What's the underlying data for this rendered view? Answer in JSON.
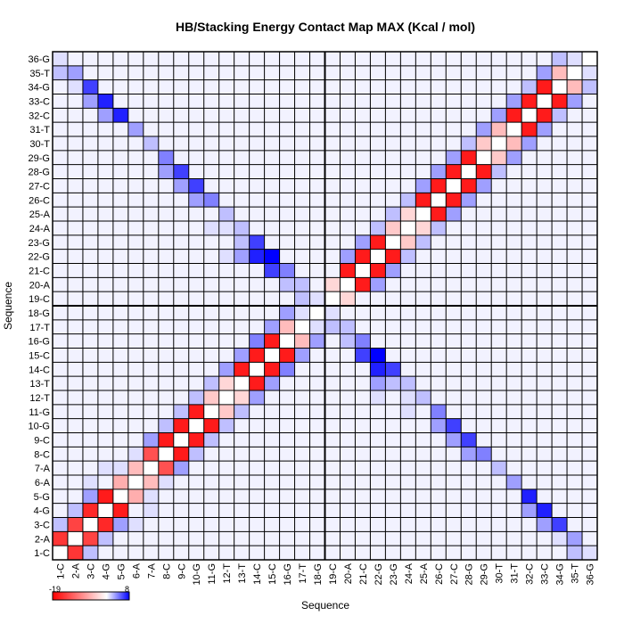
{
  "chart_data": {
    "type": "heatmap",
    "title": "HB/Stacking Energy Contact Map MAX (Kcal / mol)",
    "xlabel": "Sequence",
    "ylabel": "Sequence",
    "labels": [
      "1-C",
      "2-A",
      "3-C",
      "4-G",
      "5-G",
      "6-A",
      "7-A",
      "8-C",
      "9-C",
      "10-G",
      "11-G",
      "12-T",
      "13-T",
      "14-C",
      "15-C",
      "16-G",
      "17-T",
      "18-G",
      "19-C",
      "20-A",
      "21-C",
      "22-G",
      "23-G",
      "24-A",
      "25-A",
      "26-C",
      "27-C",
      "28-G",
      "29-G",
      "30-T",
      "31-T",
      "32-C",
      "33-C",
      "34-G",
      "35-T",
      "36-G"
    ],
    "colorbar": {
      "min_label": "-19",
      "max_label": "8",
      "min": -19,
      "max": 8
    },
    "colors": {
      "negative": "#ff0000",
      "zero": "#ffffff",
      "positive": "#0000ff",
      "grid": "#000000"
    },
    "dividers_after_index": [
      18
    ],
    "strong_pairs": [
      {
        "i": 1,
        "j": 2,
        "v": -15
      },
      {
        "i": 2,
        "j": 3,
        "v": -14
      },
      {
        "i": 3,
        "j": 4,
        "v": -16
      },
      {
        "i": 4,
        "j": 5,
        "v": -17
      },
      {
        "i": 5,
        "j": 6,
        "v": -6
      },
      {
        "i": 6,
        "j": 7,
        "v": -5
      },
      {
        "i": 7,
        "j": 8,
        "v": -13
      },
      {
        "i": 8,
        "j": 9,
        "v": -17
      },
      {
        "i": 9,
        "j": 10,
        "v": -17
      },
      {
        "i": 10,
        "j": 11,
        "v": -17
      },
      {
        "i": 11,
        "j": 12,
        "v": -4
      },
      {
        "i": 12,
        "j": 13,
        "v": -3
      },
      {
        "i": 13,
        "j": 14,
        "v": -17
      },
      {
        "i": 14,
        "j": 15,
        "v": -17
      },
      {
        "i": 15,
        "j": 16,
        "v": -17
      },
      {
        "i": 16,
        "j": 17,
        "v": -5
      },
      {
        "i": 17,
        "j": 18,
        "v": 1
      },
      {
        "i": 18,
        "j": 19,
        "v": 1
      },
      {
        "i": 19,
        "j": 20,
        "v": -3
      },
      {
        "i": 20,
        "j": 21,
        "v": -17
      },
      {
        "i": 21,
        "j": 22,
        "v": -17
      },
      {
        "i": 22,
        "j": 23,
        "v": -17
      },
      {
        "i": 23,
        "j": 24,
        "v": -4
      },
      {
        "i": 24,
        "j": 25,
        "v": -3
      },
      {
        "i": 25,
        "j": 26,
        "v": -17
      },
      {
        "i": 26,
        "j": 27,
        "v": -17
      },
      {
        "i": 27,
        "j": 28,
        "v": -17
      },
      {
        "i": 28,
        "j": 29,
        "v": -17
      },
      {
        "i": 29,
        "j": 30,
        "v": -4
      },
      {
        "i": 30,
        "j": 31,
        "v": -5
      },
      {
        "i": 31,
        "j": 32,
        "v": -17
      },
      {
        "i": 32,
        "j": 33,
        "v": -17
      },
      {
        "i": 33,
        "j": 34,
        "v": -17
      },
      {
        "i": 34,
        "j": 35,
        "v": -5
      },
      {
        "i": 35,
        "j": 36,
        "v": 1
      },
      {
        "i": 2,
        "j": 35,
        "v": 3
      },
      {
        "i": 3,
        "j": 34,
        "v": 6
      },
      {
        "i": 4,
        "j": 33,
        "v": 7
      },
      {
        "i": 4,
        "j": 5,
        "v": -17
      },
      {
        "i": 3,
        "j": 33,
        "v": 3
      },
      {
        "i": 5,
        "j": 32,
        "v": 7
      },
      {
        "i": 4,
        "j": 32,
        "v": 3
      },
      {
        "i": 6,
        "j": 31,
        "v": 3
      },
      {
        "i": 7,
        "j": 30,
        "v": 2
      },
      {
        "i": 8,
        "j": 29,
        "v": 4
      },
      {
        "i": 8,
        "j": 28,
        "v": 3
      },
      {
        "i": 9,
        "j": 28,
        "v": 6
      },
      {
        "i": 9,
        "j": 27,
        "v": 3
      },
      {
        "i": 10,
        "j": 27,
        "v": 6
      },
      {
        "i": 10,
        "j": 26,
        "v": 3
      },
      {
        "i": 11,
        "j": 26,
        "v": 4
      },
      {
        "i": 12,
        "j": 25,
        "v": 2
      },
      {
        "i": 13,
        "j": 24,
        "v": 2
      },
      {
        "i": 14,
        "j": 23,
        "v": 6
      },
      {
        "i": 14,
        "j": 22,
        "v": 7
      },
      {
        "i": 15,
        "j": 22,
        "v": 8
      },
      {
        "i": 15,
        "j": 21,
        "v": 6
      },
      {
        "i": 16,
        "j": 21,
        "v": 4
      },
      {
        "i": 16,
        "j": 20,
        "v": 2
      },
      {
        "i": 17,
        "j": 20,
        "v": 2
      },
      {
        "i": 17,
        "j": 19,
        "v": 2
      },
      {
        "i": 13,
        "j": 22,
        "v": 3
      },
      {
        "i": 12,
        "j": 24,
        "v": 1
      },
      {
        "i": 3,
        "j": 5,
        "v": 3
      },
      {
        "i": 2,
        "j": 4,
        "v": 2
      },
      {
        "i": 5,
        "j": 7,
        "v": 1
      },
      {
        "i": 6,
        "j": 8,
        "v": 1
      },
      {
        "i": 7,
        "j": 9,
        "v": 3
      },
      {
        "i": 8,
        "j": 10,
        "v": 2
      },
      {
        "i": 9,
        "j": 11,
        "v": 2
      },
      {
        "i": 10,
        "j": 12,
        "v": 2
      },
      {
        "i": 11,
        "j": 13,
        "v": 2
      },
      {
        "i": 12,
        "j": 14,
        "v": 3
      },
      {
        "i": 13,
        "j": 15,
        "v": 3
      },
      {
        "i": 14,
        "j": 16,
        "v": 4
      },
      {
        "i": 15,
        "j": 17,
        "v": 3
      },
      {
        "i": 16,
        "j": 18,
        "v": 3
      },
      {
        "i": 20,
        "j": 22,
        "v": 3
      },
      {
        "i": 21,
        "j": 23,
        "v": 3
      },
      {
        "i": 22,
        "j": 24,
        "v": 2
      },
      {
        "i": 23,
        "j": 25,
        "v": 2
      },
      {
        "i": 24,
        "j": 26,
        "v": 2
      },
      {
        "i": 25,
        "j": 27,
        "v": 3
      },
      {
        "i": 26,
        "j": 28,
        "v": 3
      },
      {
        "i": 27,
        "j": 29,
        "v": 3
      },
      {
        "i": 28,
        "j": 30,
        "v": 2
      },
      {
        "i": 29,
        "j": 31,
        "v": 3
      },
      {
        "i": 30,
        "j": 32,
        "v": 3
      },
      {
        "i": 31,
        "j": 33,
        "v": 3
      },
      {
        "i": 32,
        "j": 34,
        "v": 2
      },
      {
        "i": 33,
        "j": 35,
        "v": 3
      },
      {
        "i": 34,
        "j": 36,
        "v": 2
      },
      {
        "i": 1,
        "j": 3,
        "v": 2
      },
      {
        "i": 1,
        "j": 35,
        "v": 2
      },
      {
        "i": 1,
        "j": 36,
        "v": 1
      },
      {
        "i": 2,
        "j": 34,
        "v": 1
      },
      {
        "i": 5,
        "j": 6,
        "v": -6
      },
      {
        "i": 3,
        "j": 6,
        "v": 1
      },
      {
        "i": 4,
        "j": 7,
        "v": 1
      },
      {
        "i": 12,
        "j": 22,
        "v": 1
      },
      {
        "i": 11,
        "j": 24,
        "v": 1
      },
      {
        "i": 13,
        "j": 23,
        "v": 2
      }
    ],
    "background_level": 0.4
  }
}
